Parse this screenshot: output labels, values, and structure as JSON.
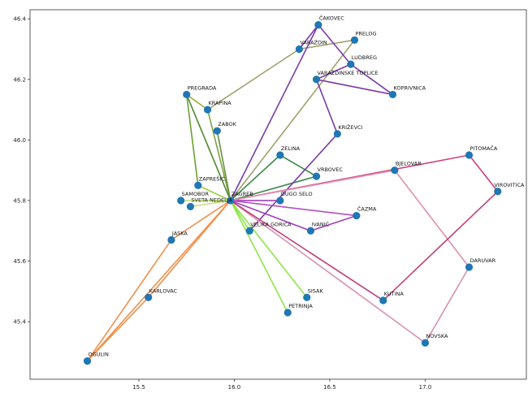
{
  "chart_data": {
    "type": "scatter",
    "title": "",
    "xlabel": "",
    "ylabel": "",
    "xlim": [
      14.93,
      17.53
    ],
    "ylim": [
      45.21,
      46.43
    ],
    "x_ticks": [
      15.5,
      16.0,
      16.5,
      17.0
    ],
    "y_ticks": [
      45.4,
      45.6,
      45.8,
      46.0,
      46.2,
      46.4
    ],
    "grid": false,
    "point_color": "#1f77b4",
    "nodes": [
      {
        "name": "ČAKOVEC",
        "x": 16.44,
        "y": 46.38
      },
      {
        "name": "PRELOG",
        "x": 16.63,
        "y": 46.33
      },
      {
        "name": "VARAŽDIN",
        "x": 16.34,
        "y": 46.3
      },
      {
        "name": "LUDBREG",
        "x": 16.61,
        "y": 46.25
      },
      {
        "name": "VARAŽDINSKE TOPLICE",
        "x": 16.43,
        "y": 46.2
      },
      {
        "name": "KOPRIVNICA",
        "x": 16.83,
        "y": 46.15
      },
      {
        "name": "PREGRADA",
        "x": 15.75,
        "y": 46.15
      },
      {
        "name": "KRAPINA",
        "x": 15.86,
        "y": 46.1
      },
      {
        "name": "ZABOK",
        "x": 15.91,
        "y": 46.03
      },
      {
        "name": "KRIŽEVCI",
        "x": 16.54,
        "y": 46.02
      },
      {
        "name": "ZELINA",
        "x": 16.24,
        "y": 45.95
      },
      {
        "name": "PITOMAČA",
        "x": 17.23,
        "y": 45.95
      },
      {
        "name": "BJELOVAR",
        "x": 16.84,
        "y": 45.9
      },
      {
        "name": "VRBOVEC",
        "x": 16.43,
        "y": 45.88
      },
      {
        "name": "ZAPREŠIĆ",
        "x": 15.81,
        "y": 45.85
      },
      {
        "name": "VIROVITICA",
        "x": 17.38,
        "y": 45.83
      },
      {
        "name": "SAMOBOR",
        "x": 15.72,
        "y": 45.8
      },
      {
        "name": "SVETA NEDELJA",
        "x": 15.77,
        "y": 45.78
      },
      {
        "name": "ZAGREB",
        "x": 15.98,
        "y": 45.8
      },
      {
        "name": "DUGO SELO",
        "x": 16.24,
        "y": 45.8
      },
      {
        "name": "ČAZMA",
        "x": 16.64,
        "y": 45.75
      },
      {
        "name": "VELIKA GORICA",
        "x": 16.08,
        "y": 45.7
      },
      {
        "name": "IVANIĆ",
        "x": 16.4,
        "y": 45.7
      },
      {
        "name": "JASKA",
        "x": 15.67,
        "y": 45.67
      },
      {
        "name": "DARUVAR",
        "x": 17.23,
        "y": 45.58
      },
      {
        "name": "KARLOVAC",
        "x": 15.55,
        "y": 45.48
      },
      {
        "name": "KUTINA",
        "x": 16.78,
        "y": 45.47
      },
      {
        "name": "SISAK",
        "x": 16.38,
        "y": 45.48
      },
      {
        "name": "PETRINJA",
        "x": 16.28,
        "y": 45.43
      },
      {
        "name": "NOVSKA",
        "x": 17.0,
        "y": 45.33
      },
      {
        "name": "OGULIN",
        "x": 15.23,
        "y": 45.27
      }
    ],
    "edges": [
      {
        "from": "ZAGREB",
        "to": "OGULIN",
        "color": "#f0904a"
      },
      {
        "from": "ZAGREB",
        "to": "KARLOVAC",
        "color": "#f0904a"
      },
      {
        "from": "ZAGREB",
        "to": "JASKA",
        "color": "#f0904a"
      },
      {
        "from": "JASKA",
        "to": "OGULIN",
        "color": "#f0904a"
      },
      {
        "from": "KARLOVAC",
        "to": "OGULIN",
        "color": "#f0904a"
      },
      {
        "from": "ZAGREB",
        "to": "SAMOBOR",
        "color": "#c7e07a"
      },
      {
        "from": "ZAGREB",
        "to": "SVETA NEDELJA",
        "color": "#c7e07a"
      },
      {
        "from": "ZAGREB",
        "to": "ZAPREŠIĆ",
        "color": "#9acc3c"
      },
      {
        "from": "ZAGREB",
        "to": "SISAK",
        "color": "#8ee64a"
      },
      {
        "from": "ZAGREB",
        "to": "PETRINJA",
        "color": "#8ee64a"
      },
      {
        "from": "ZAGREB",
        "to": "VELIKA GORICA",
        "color": "#8ee64a"
      },
      {
        "from": "PREGRADA",
        "to": "ZAPREŠIĆ",
        "color": "#6aa030"
      },
      {
        "from": "PREGRADA",
        "to": "KRAPINA",
        "color": "#9ab040"
      },
      {
        "from": "PREGRADA",
        "to": "ZAGREB",
        "color": "#4f8a30"
      },
      {
        "from": "KRAPINA",
        "to": "ZAGREB",
        "color": "#7fa048"
      },
      {
        "from": "ZABOK",
        "to": "ZAGREB",
        "color": "#6a9040"
      },
      {
        "from": "KRAPINA",
        "to": "VARAŽDIN",
        "color": "#a0a070"
      },
      {
        "from": "ZAGREB",
        "to": "PRELOG",
        "color": "#a0a070"
      },
      {
        "from": "VARAŽDIN",
        "to": "PRELOG",
        "color": "#a0a070"
      },
      {
        "from": "ZAGREB",
        "to": "ZELINA",
        "color": "#3a8a4a"
      },
      {
        "from": "ZELINA",
        "to": "VRBOVEC",
        "color": "#3a8a4a"
      },
      {
        "from": "ZAGREB",
        "to": "VRBOVEC",
        "color": "#3a8a4a"
      },
      {
        "from": "ZAGREB",
        "to": "ČAKOVEC",
        "color": "#7a3aa8"
      },
      {
        "from": "ČAKOVEC",
        "to": "LUDBREG",
        "color": "#7a3aa8"
      },
      {
        "from": "LUDBREG",
        "to": "KOPRIVNICA",
        "color": "#7a3aa8"
      },
      {
        "from": "ČAKOVEC",
        "to": "VARAŽDIN",
        "color": "#7a3aa8"
      },
      {
        "from": "VARAŽDINSKE TOPLICE",
        "to": "LUDBREG",
        "color": "#7a3aa8"
      },
      {
        "from": "VARAŽDINSKE TOPLICE",
        "to": "KOPRIVNICA",
        "color": "#7a3aa8"
      },
      {
        "from": "VARAŽDINSKE TOPLICE",
        "to": "KRIŽEVCI",
        "color": "#7a3aa8"
      },
      {
        "from": "KRIŽEVCI",
        "to": "VELIKA GORICA",
        "color": "#7a3aa8"
      },
      {
        "from": "ZAGREB",
        "to": "DUGO SELO",
        "color": "#a040c0"
      },
      {
        "from": "ZAGREB",
        "to": "ČAZMA",
        "color": "#b050c0"
      },
      {
        "from": "ZAGREB",
        "to": "IVANIĆ",
        "color": "#a040b8"
      },
      {
        "from": "IVANIĆ",
        "to": "ČAZMA",
        "color": "#a040b8"
      },
      {
        "from": "ZAGREB",
        "to": "PITOMAČA",
        "color": "#d04080"
      },
      {
        "from": "PITOMAČA",
        "to": "VIROVITICA",
        "color": "#d04080"
      },
      {
        "from": "ZAGREB",
        "to": "BJELOVAR",
        "color": "#e090b0"
      },
      {
        "from": "BJELOVAR",
        "to": "DARUVAR",
        "color": "#e090b0"
      },
      {
        "from": "DARUVAR",
        "to": "NOVSKA",
        "color": "#d890b0"
      },
      {
        "from": "ZAGREB",
        "to": "NOVSKA",
        "color": "#d890b0"
      },
      {
        "from": "ZAGREB",
        "to": "KUTINA",
        "color": "#c0407a"
      },
      {
        "from": "KUTINA",
        "to": "VIROVITICA",
        "color": "#c0407a"
      }
    ]
  }
}
